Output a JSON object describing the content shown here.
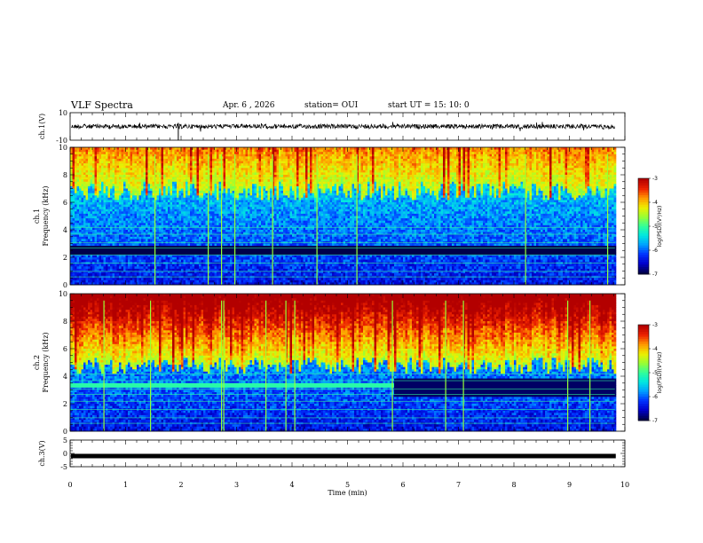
{
  "header": {
    "title": "VLF Spectra",
    "date": "Apr. 6 , 2026",
    "station": "station= OUI",
    "start_ut": "start UT = 15: 10: 0"
  },
  "chart_data": [
    {
      "type": "line",
      "name": "ch1-waveform",
      "ylabel": "ch.1(V)",
      "ylim": [
        -10,
        10
      ],
      "yticks": [
        "10",
        "-10"
      ],
      "baseline": 0
    },
    {
      "type": "heatmap",
      "name": "ch1-spectrogram",
      "ylabel": "ch.1 Frequency (kHz)",
      "ylim": [
        0,
        10
      ],
      "yticks": [
        "0",
        "2",
        "4",
        "6",
        "8",
        "10"
      ],
      "colorbar": {
        "label": "log(PSD)(V²/Hz)",
        "range": [
          -7,
          -3
        ],
        "ticks": [
          "-3",
          "-4",
          "-5",
          "-6",
          "-7"
        ]
      },
      "colors": [
        "#00004a",
        "#0000cc",
        "#0033ff",
        "#00a0ff",
        "#00e8e0",
        "#33ff99",
        "#99ff33",
        "#eeee00",
        "#ff9900",
        "#ee2200",
        "#b30000"
      ]
    },
    {
      "type": "heatmap",
      "name": "ch2-spectrogram",
      "ylabel": "ch.2 Frequency (kHz)",
      "ylim": [
        0,
        10
      ],
      "yticks": [
        "0",
        "2",
        "4",
        "6",
        "8",
        "10"
      ],
      "colorbar": {
        "label": "log(PSD)(V²/Hz)",
        "range": [
          -7,
          -3
        ],
        "ticks": [
          "-3",
          "-4",
          "-5",
          "-6",
          "-7"
        ]
      }
    },
    {
      "type": "line",
      "name": "ch3-level",
      "ylabel": "ch.3(V)",
      "ylim": [
        -5,
        5
      ],
      "yticks": [
        "5",
        "0",
        "-5"
      ],
      "value": -1
    }
  ],
  "xaxis": {
    "label": "Time (min)",
    "range": [
      0,
      10
    ],
    "data_end": 9.82,
    "ticks": [
      "0",
      "1",
      "2",
      "3",
      "4",
      "5",
      "6",
      "7",
      "8",
      "9",
      "10"
    ]
  }
}
